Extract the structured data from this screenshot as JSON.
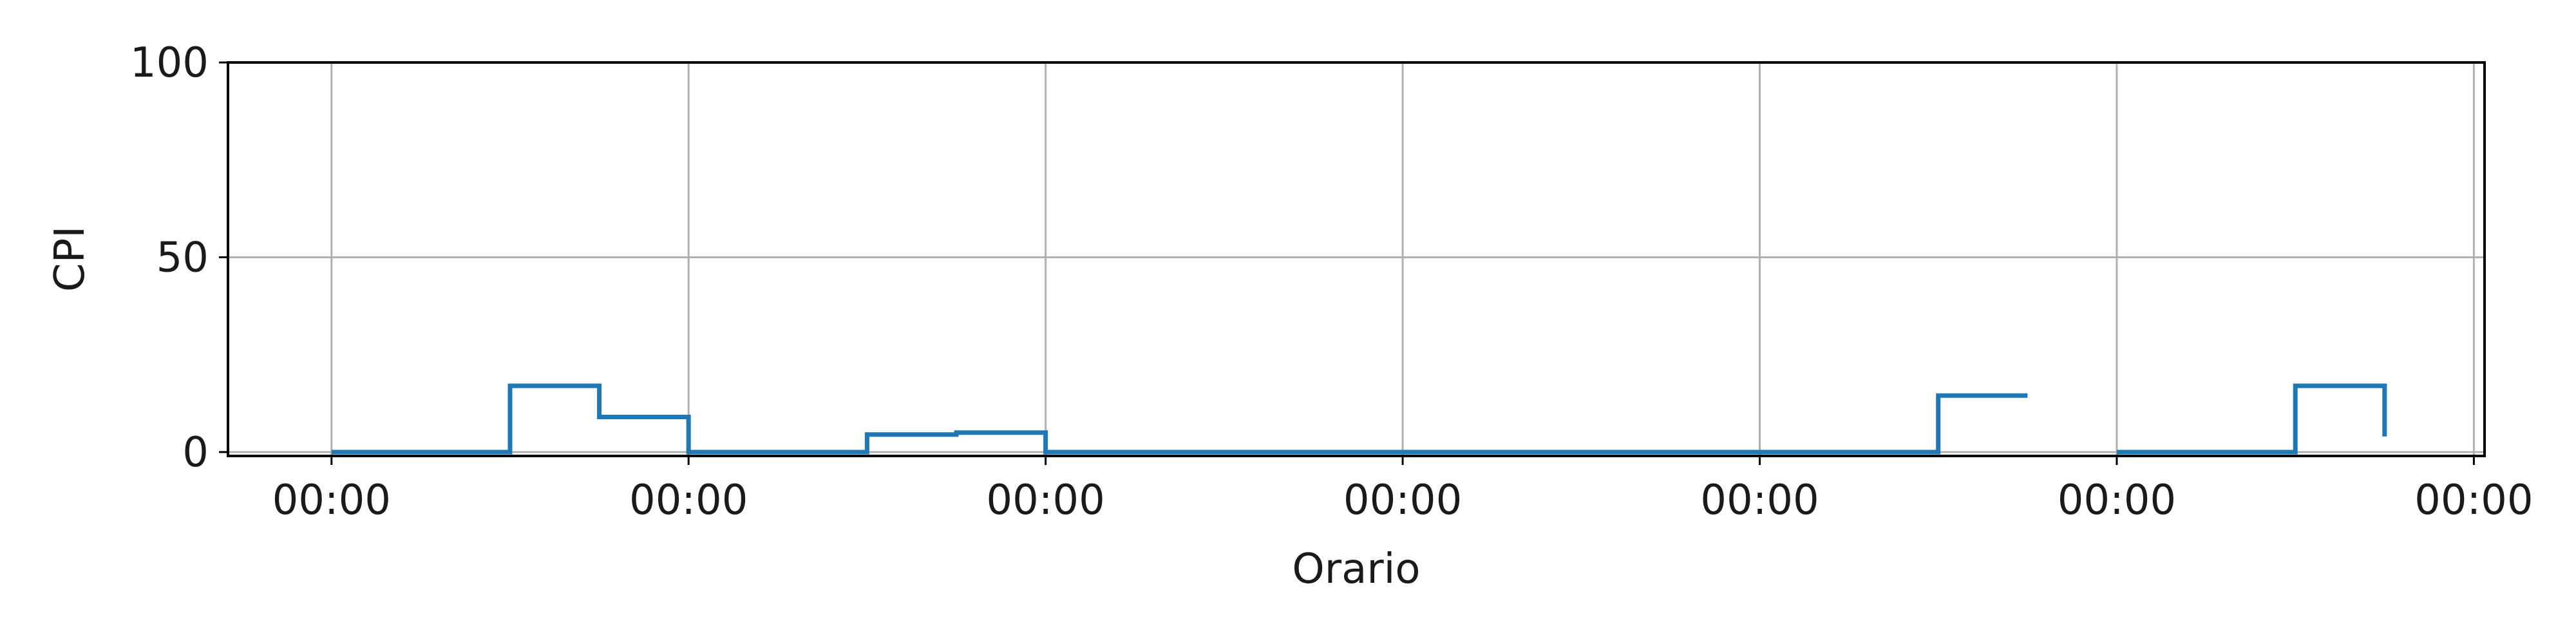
{
  "chart_data": {
    "type": "line",
    "step": true,
    "title": "",
    "xlabel": "Orario",
    "ylabel": "CPI",
    "xlim": [
      -0.29,
      6.03
    ],
    "ylim": [
      -1,
      100
    ],
    "x_ticks": [
      0,
      1,
      2,
      3,
      4,
      5,
      6
    ],
    "x_tick_labels": [
      "00:00",
      "00:00",
      "00:00",
      "00:00",
      "00:00",
      "00:00",
      "00:00"
    ],
    "y_ticks": [
      0,
      50,
      100
    ],
    "y_tick_labels": [
      "0",
      "50",
      "100"
    ],
    "grid": true,
    "series": [
      {
        "color": "#1f77b4",
        "segments": [
          [
            [
              0,
              0
            ],
            [
              0.5,
              0
            ],
            [
              0.5,
              17
            ],
            [
              0.75,
              17
            ],
            [
              0.75,
              9
            ],
            [
              1.0,
              9
            ],
            [
              1.0,
              0
            ],
            [
              1.5,
              0
            ],
            [
              1.5,
              4.5
            ],
            [
              1.75,
              4.5
            ],
            [
              1.75,
              5
            ],
            [
              2.0,
              5
            ],
            [
              2.0,
              0
            ],
            [
              4.5,
              0
            ],
            [
              4.5,
              14.5
            ],
            [
              4.75,
              14.5
            ]
          ],
          [
            [
              5.0,
              0
            ],
            [
              5.5,
              0
            ],
            [
              5.5,
              17
            ],
            [
              5.75,
              17
            ],
            [
              5.75,
              4
            ]
          ]
        ]
      }
    ]
  }
}
